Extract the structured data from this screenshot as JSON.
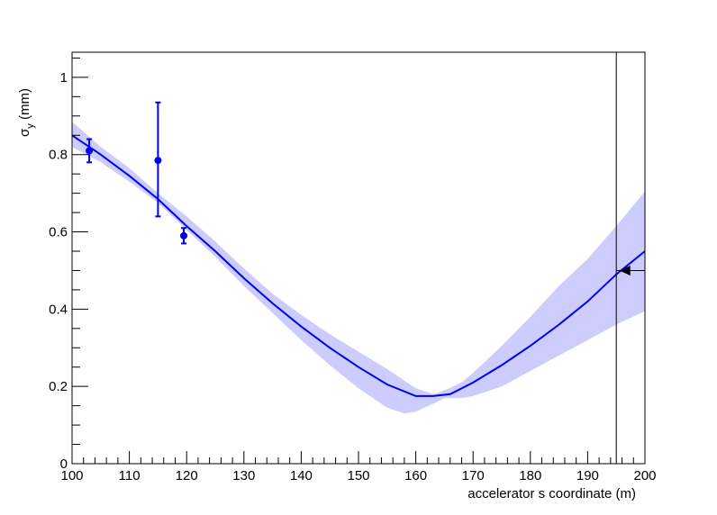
{
  "chart_data": {
    "type": "line",
    "title": "",
    "xlabel": "accelerator s coordinate (m)",
    "ylabel": {
      "main": "σ",
      "sub": "y",
      "unit": " (mm)"
    },
    "xlim": [
      100,
      200
    ],
    "ylim": [
      0,
      1.065
    ],
    "x_ticks": [
      100,
      110,
      120,
      130,
      140,
      150,
      160,
      170,
      180,
      190,
      200
    ],
    "y_ticks": [
      0,
      0.2,
      0.4,
      0.6,
      0.8,
      1
    ],
    "y_tick_labels": [
      "0",
      "0.2",
      "0.4",
      "0.6",
      "0.8",
      "1"
    ],
    "grid": false,
    "series": [
      {
        "kind": "fit_line",
        "color": "#0000ee",
        "x": [
          100,
          105,
          110,
          115,
          120,
          125,
          130,
          135,
          140,
          145,
          150,
          155,
          160,
          163,
          166,
          170,
          175,
          180,
          185,
          190,
          195,
          200
        ],
        "y": [
          0.85,
          0.8,
          0.745,
          0.685,
          0.615,
          0.55,
          0.48,
          0.415,
          0.355,
          0.3,
          0.25,
          0.205,
          0.175,
          0.175,
          0.18,
          0.21,
          0.255,
          0.305,
          0.36,
          0.42,
          0.49,
          0.55
        ]
      },
      {
        "kind": "confidence_band",
        "color": "#ccccff",
        "x": [
          100,
          105,
          110,
          115,
          120,
          125,
          130,
          135,
          140,
          145,
          150,
          155,
          158,
          160,
          163,
          165,
          168,
          170,
          175,
          180,
          185,
          190,
          195,
          200
        ],
        "lower": [
          0.82,
          0.78,
          0.73,
          0.675,
          0.605,
          0.535,
          0.46,
          0.39,
          0.32,
          0.255,
          0.195,
          0.145,
          0.13,
          0.135,
          0.155,
          0.17,
          0.17,
          0.175,
          0.2,
          0.24,
          0.28,
          0.32,
          0.36,
          0.395
        ],
        "upper": [
          0.885,
          0.82,
          0.765,
          0.7,
          0.64,
          0.575,
          0.505,
          0.44,
          0.385,
          0.335,
          0.29,
          0.245,
          0.215,
          0.195,
          0.18,
          0.19,
          0.21,
          0.235,
          0.305,
          0.38,
          0.46,
          0.53,
          0.615,
          0.705
        ]
      },
      {
        "kind": "measurements",
        "color": "#0000ee",
        "points": [
          {
            "x": 103,
            "y": 0.81,
            "ylow": 0.78,
            "yhigh": 0.84
          },
          {
            "x": 115,
            "y": 0.785,
            "ylow": 0.64,
            "yhigh": 0.935
          },
          {
            "x": 119.5,
            "y": 0.59,
            "ylow": 0.57,
            "yhigh": 0.61
          }
        ]
      },
      {
        "kind": "target_marker",
        "color": "#000000",
        "x": 196.5,
        "y": 0.5,
        "hline_from": 195,
        "hline_to": 200
      }
    ],
    "vertical_line_x": 195
  }
}
